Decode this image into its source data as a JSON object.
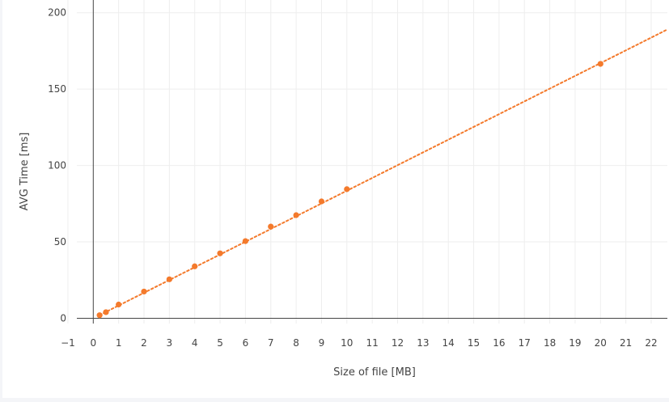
{
  "chart_data": {
    "type": "line",
    "title": "",
    "xlabel": "Size of file [MB]",
    "ylabel": "AVG Time [ms]",
    "xlim": [
      -1,
      22.5
    ],
    "ylim": [
      -3,
      205
    ],
    "x_ticks": [
      -1,
      0,
      1,
      2,
      3,
      4,
      5,
      6,
      7,
      8,
      9,
      10,
      11,
      12,
      13,
      14,
      15,
      16,
      17,
      18,
      19,
      20,
      21,
      22
    ],
    "y_ticks": [
      0,
      50,
      100,
      150,
      200
    ],
    "x_tick_labels": [
      "−1",
      "0",
      "1",
      "2",
      "3",
      "4",
      "5",
      "6",
      "7",
      "8",
      "9",
      "10",
      "11",
      "12",
      "13",
      "14",
      "15",
      "16",
      "17",
      "18",
      "19",
      "20",
      "21",
      "22"
    ],
    "y_tick_labels": [
      "0",
      "50",
      "100",
      "150",
      "200"
    ],
    "grid": true,
    "series": [
      {
        "color": "#f47a2c",
        "line_style": "dotted",
        "markers": true,
        "x": [
          0.25,
          0.5,
          1,
          2,
          3,
          4,
          5,
          6,
          7,
          8,
          9,
          10,
          20
        ],
        "y": [
          2,
          4,
          9,
          17.5,
          25.5,
          34,
          42.5,
          50.5,
          60,
          67.5,
          76.5,
          84.5,
          166.5
        ]
      }
    ],
    "trend_line": {
      "slope": 8.35,
      "intercept": 0,
      "x_end": 22.6
    }
  }
}
